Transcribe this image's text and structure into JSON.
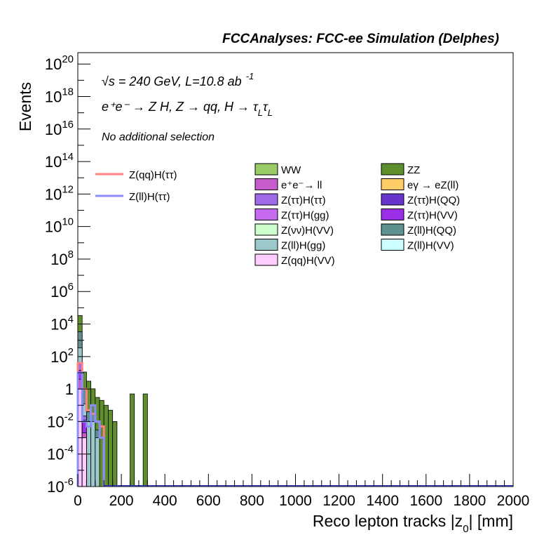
{
  "chart_data": {
    "type": "bar",
    "title": "FCCAnalyses: FCC-ee Simulation (Delphes)",
    "xlabel": "Reco lepton tracks |z",
    "xlabel_sub": "0",
    "xlabel_tail": "| [mm]",
    "ylabel": "Events",
    "xlim": [
      0,
      2000
    ],
    "ylim_log10": [
      -6,
      20.7
    ],
    "yscale": "log",
    "x_ticks": [
      "0",
      "200",
      "400",
      "600",
      "800",
      "1000",
      "1200",
      "1400",
      "1600",
      "1800",
      "2000"
    ],
    "y_ticks": [
      {
        "base": "10",
        "exp": "20"
      },
      {
        "base": "10",
        "exp": "18"
      },
      {
        "base": "10",
        "exp": "16"
      },
      {
        "base": "10",
        "exp": "14"
      },
      {
        "base": "10",
        "exp": "12"
      },
      {
        "base": "10",
        "exp": "10"
      },
      {
        "base": "10",
        "exp": "8"
      },
      {
        "base": "10",
        "exp": "6"
      },
      {
        "base": "10",
        "exp": "4"
      },
      {
        "base": "10",
        "exp": "2"
      },
      {
        "base": "1",
        "exp": ""
      },
      {
        "base": "10",
        "exp": "-2"
      },
      {
        "base": "10",
        "exp": "-4"
      },
      {
        "base": "10",
        "exp": "-6"
      }
    ],
    "annotations": {
      "energy": "√s = 240 GeV, L=10.8 ab",
      "energy_sup": "-1",
      "process": "e⁺e⁻ → Z H, Z → qq, H → τ",
      "process_sub1": "L",
      "process_tau2": "τ",
      "process_sub2": "L",
      "selection": "No additional selection"
    },
    "bin_width": 20,
    "stacked_series": [
      {
        "name": "ZZ",
        "color": "#5f8e2c",
        "x": [
          0,
          20,
          40,
          60,
          80,
          100,
          120,
          140,
          160,
          240,
          300
        ],
        "y": [
          30000.0,
          10,
          3,
          1,
          0.3,
          0.2,
          0.1,
          0.05,
          0.01,
          0.5,
          0.5
        ]
      },
      {
        "name": "Z(ll)H(QQ)",
        "color": "#5f9090",
        "x": [
          0,
          20,
          40,
          60,
          80
        ],
        "y": [
          3000,
          1,
          0.03,
          0.02,
          0.002
        ]
      },
      {
        "name": "Z(ll)H(gg)",
        "color": "#9cc8cc",
        "x": [
          0,
          20,
          40,
          60,
          80
        ],
        "y": [
          300,
          0.1,
          0.01,
          0.01,
          0.001
        ]
      },
      {
        "name": "Z(ττ)H(ττ)",
        "color": "#a06ae8",
        "x": [
          0,
          20
        ],
        "y": [
          30,
          0.01
        ]
      },
      {
        "name": "Z(ττ)H(VV)",
        "color": "#9b30e8",
        "x": [
          0,
          20
        ],
        "y": [
          10,
          0.01
        ]
      },
      {
        "name": "e⁺e⁻→ ll",
        "color": "#c65ccc",
        "x": [
          0,
          20
        ],
        "y": [
          3,
          0.001
        ]
      },
      {
        "name": "Z(qq)H(VV)",
        "color": "#ffccff",
        "x": [
          0,
          20
        ],
        "y": [
          1,
          0.001
        ]
      }
    ],
    "line_series": [
      {
        "name": "Z(qq)H(ττ)",
        "color": "#ff8080",
        "x": [
          0,
          20,
          40,
          60,
          80,
          100
        ],
        "y": [
          40,
          1,
          0.05,
          0.03,
          0.01,
          0.005
        ]
      },
      {
        "name": "Z(ll)H(ττ)",
        "color": "#8b8bff",
        "x": [
          0,
          20,
          40,
          60,
          80,
          100
        ],
        "y": [
          10,
          0.01,
          0.005,
          0.1,
          0.01,
          0.001
        ]
      }
    ],
    "legend_lines": [
      {
        "label": "Z(qq)H(ττ)",
        "color": "#ff8080"
      },
      {
        "label": "Z(ll)H(ττ)",
        "color": "#8b8bff"
      }
    ],
    "legend_fill_col1": [
      {
        "label": "WW",
        "color": "#99cc66"
      },
      {
        "label": "e⁺e⁻→ ll",
        "color": "#c65ccc"
      },
      {
        "label": "Z(ττ)H(ττ)",
        "color": "#a06ae8"
      },
      {
        "label": "Z(ττ)H(gg)",
        "color": "#c66af0"
      },
      {
        "label": "Z(νν)H(VV)",
        "color": "#ccffcc"
      },
      {
        "label": "Z(ll)H(gg)",
        "color": "#9cc8cc"
      },
      {
        "label": "Z(qq)H(VV)",
        "color": "#ffccff"
      }
    ],
    "legend_fill_col2": [
      {
        "label": "ZZ",
        "color": "#5f8e2c"
      },
      {
        "label": "eγ → eZ(ll)",
        "color": "#ffcc66"
      },
      {
        "label": "Z(ττ)H(QQ)",
        "color": "#6633cc"
      },
      {
        "label": "Z(ττ)H(VV)",
        "color": "#9b30e8"
      },
      {
        "label": "Z(ll)H(QQ)",
        "color": "#5f9090"
      },
      {
        "label": "Z(ll)H(VV)",
        "color": "#ccffff"
      }
    ]
  }
}
